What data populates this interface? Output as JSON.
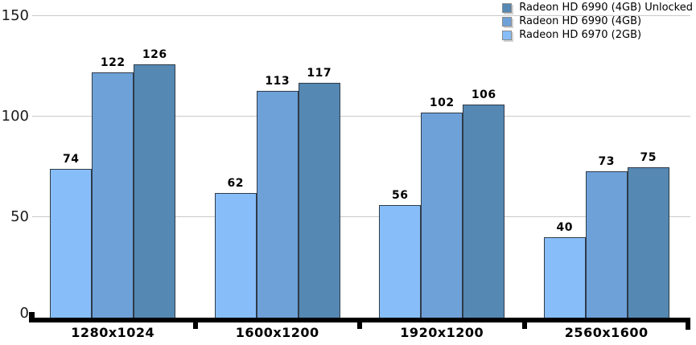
{
  "chart_data": {
    "type": "bar",
    "title": "",
    "xlabel": "",
    "ylabel": "",
    "categories": [
      "1280x1024",
      "1600x1200",
      "1920x1200",
      "2560x1600"
    ],
    "series": [
      {
        "name": "Radeon HD 6970 (2GB)",
        "color": "#87befa",
        "values": [
          74,
          62,
          56,
          40
        ]
      },
      {
        "name": "Radeon HD 6990 (4GB)",
        "color": "#6fa1d9",
        "values": [
          122,
          113,
          102,
          73
        ]
      },
      {
        "name": "Radeon HD 6990 (4GB) Unlocked",
        "color": "#5588b2",
        "values": [
          126,
          117,
          106,
          75
        ]
      }
    ],
    "legend": {
      "position": "top-right",
      "order_top_to_bottom": [
        "Radeon HD 6990 (4GB) Unlocked",
        "Radeon HD 6990 (4GB)",
        "Radeon HD 6970 (2GB)"
      ]
    },
    "yticks": [
      0,
      50,
      100,
      150
    ],
    "ylim": [
      0,
      150
    ],
    "grid": "horizontal",
    "bar_value_labels": true,
    "colors": {
      "bar_border": "#2e3b48",
      "gridline": "#c9c9c9",
      "axis": "#000000",
      "text": "#000000"
    }
  }
}
